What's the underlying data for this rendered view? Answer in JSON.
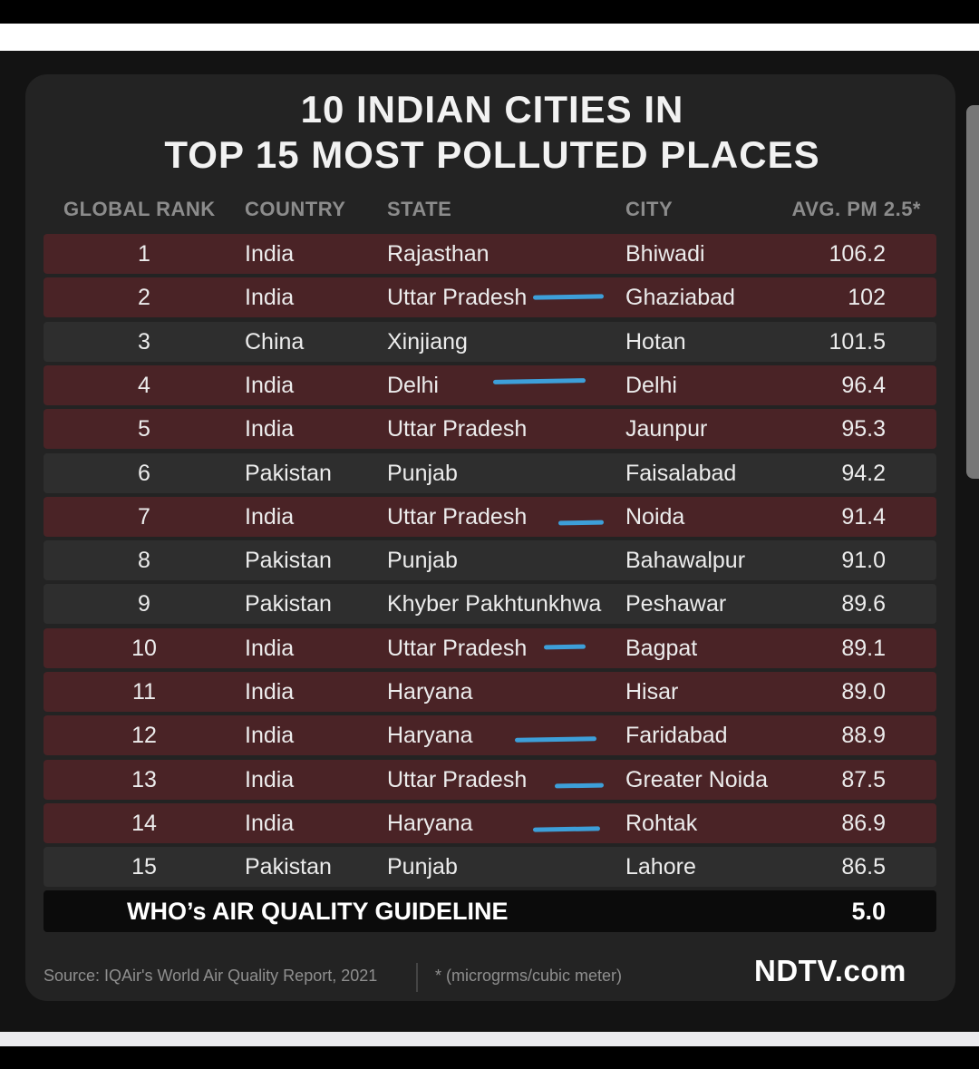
{
  "title": {
    "line1": "10 INDIAN CITIES IN",
    "line2": "TOP 15 MOST POLLUTED PLACES"
  },
  "headers": {
    "rank": "GLOBAL RANK",
    "country": "COUNTRY",
    "state": "STATE",
    "city": "CITY",
    "pm": "AVG. PM 2.5*"
  },
  "rows": [
    {
      "rank": "1",
      "country": "India",
      "state": "Rajasthan",
      "city": "Bhiwadi",
      "pm": "106.2"
    },
    {
      "rank": "2",
      "country": "India",
      "state": "Uttar Pradesh",
      "city": "Ghaziabad",
      "pm": "102"
    },
    {
      "rank": "3",
      "country": "China",
      "state": "Xinjiang",
      "city": "Hotan",
      "pm": "101.5"
    },
    {
      "rank": "4",
      "country": "India",
      "state": "Delhi",
      "city": "Delhi",
      "pm": "96.4"
    },
    {
      "rank": "5",
      "country": "India",
      "state": "Uttar Pradesh",
      "city": "Jaunpur",
      "pm": "95.3"
    },
    {
      "rank": "6",
      "country": "Pakistan",
      "state": "Punjab",
      "city": "Faisalabad",
      "pm": "94.2"
    },
    {
      "rank": "7",
      "country": "India",
      "state": "Uttar Pradesh",
      "city": "Noida",
      "pm": "91.4"
    },
    {
      "rank": "8",
      "country": "Pakistan",
      "state": "Punjab",
      "city": "Bahawalpur",
      "pm": "91.0"
    },
    {
      "rank": "9",
      "country": "Pakistan",
      "state": "Khyber Pakhtunkhwa",
      "city": "Peshawar",
      "pm": "89.6"
    },
    {
      "rank": "10",
      "country": "India",
      "state": "Uttar Pradesh",
      "city": "Bagpat",
      "pm": "89.1"
    },
    {
      "rank": "11",
      "country": "India",
      "state": "Haryana",
      "city": "Hisar",
      "pm": "89.0"
    },
    {
      "rank": "12",
      "country": "India",
      "state": "Haryana",
      "city": "Faridabad",
      "pm": "88.9"
    },
    {
      "rank": "13",
      "country": "India",
      "state": "Uttar Pradesh",
      "city": "Greater Noida",
      "pm": "87.5"
    },
    {
      "rank": "14",
      "country": "India",
      "state": "Haryana",
      "city": "Rohtak",
      "pm": "86.9"
    },
    {
      "rank": "15",
      "country": "Pakistan",
      "state": "Punjab",
      "city": "Lahore",
      "pm": "86.5"
    }
  ],
  "guideline": {
    "label": "WHO’s AIR QUALITY GUIDELINE",
    "value": "5.0"
  },
  "footer": {
    "source": "Source: IQAir's World Air Quality Report, 2021",
    "note": "* (microgrms/cubic meter)",
    "logo": "NDTV.com"
  },
  "colors": {
    "india_row": "#4a2326",
    "other_row": "#2e2e2e",
    "pen_mark": "#3d9fd9"
  }
}
